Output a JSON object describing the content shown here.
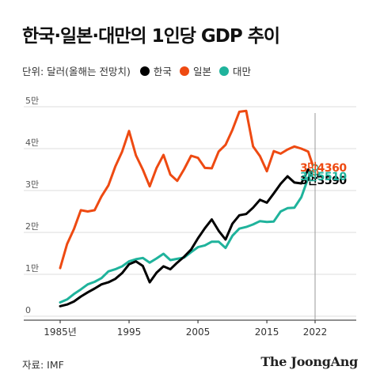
{
  "title": "한국·일본·대만의 1인당 GDP 추이",
  "unit_label": "단위: 달러(올해는 전망치)",
  "source": "자료: IMF",
  "brand": "The JoongAng",
  "chart_data": {
    "type": "line",
    "title": "한국·일본·대만의 1인당 GDP 추이",
    "unit": "단위: 달러(올해는 전망치)",
    "xlabel": "",
    "ylabel": "",
    "xlim": [
      1985,
      2022
    ],
    "ylim": [
      0,
      50000
    ],
    "grid": true,
    "legend": "top-left",
    "x_ticks": [
      {
        "value": 1985,
        "label": "1985년"
      },
      {
        "value": 1995,
        "label": "1995"
      },
      {
        "value": 2005,
        "label": "2005"
      },
      {
        "value": 2015,
        "label": "2015"
      },
      {
        "value": 2022,
        "label": "2022"
      }
    ],
    "y_ticks": [
      {
        "value": 0,
        "label": "0"
      },
      {
        "value": 10000,
        "label": "1만"
      },
      {
        "value": 20000,
        "label": "2만"
      },
      {
        "value": 30000,
        "label": "3만"
      },
      {
        "value": 40000,
        "label": "4만"
      },
      {
        "value": 50000,
        "label": "5만"
      }
    ],
    "marker_year": 2022,
    "x": [
      1985,
      1986,
      1987,
      1988,
      1989,
      1990,
      1991,
      1992,
      1993,
      1994,
      1995,
      1996,
      1997,
      1998,
      1999,
      2000,
      2001,
      2002,
      2003,
      2004,
      2005,
      2006,
      2007,
      2008,
      2009,
      2010,
      2011,
      2012,
      2013,
      2014,
      2015,
      2016,
      2017,
      2018,
      2019,
      2020,
      2021,
      2022
    ],
    "series": [
      {
        "name": "한국",
        "color": "#000000",
        "values": [
          2400,
          2800,
          3500,
          4700,
          5700,
          6600,
          7600,
          8100,
          8900,
          10300,
          12400,
          13100,
          12000,
          8100,
          10400,
          11900,
          11200,
          12800,
          14200,
          15900,
          18600,
          21000,
          23100,
          20400,
          18300,
          22100,
          24100,
          24400,
          25900,
          27800,
          27100,
          29300,
          31600,
          33400,
          31900,
          31700,
          35000,
          33590
        ],
        "end_label": "3만3590"
      },
      {
        "name": "일본",
        "color": "#ee4a12",
        "values": [
          11500,
          17200,
          20800,
          25300,
          25000,
          25300,
          28600,
          31200,
          35700,
          39300,
          44200,
          38400,
          35000,
          31000,
          35400,
          38500,
          33800,
          32300,
          35100,
          38300,
          37800,
          35400,
          35300,
          39300,
          40900,
          44500,
          48800,
          49000,
          40500,
          38200,
          34600,
          39400,
          38800,
          39800,
          40500,
          40000,
          39300,
          34360
        ],
        "end_label": "3만4360"
      },
      {
        "name": "대만",
        "color": "#1fb39c",
        "values": [
          3300,
          4000,
          5300,
          6400,
          7600,
          8200,
          9100,
          10700,
          11200,
          11900,
          13100,
          13600,
          13900,
          12800,
          13800,
          14900,
          13400,
          13700,
          14000,
          15300,
          16500,
          16900,
          17800,
          17800,
          16300,
          19200,
          20900,
          21300,
          21900,
          22700,
          22500,
          22600,
          25000,
          25800,
          25900,
          28400,
          33000,
          35510
        ],
        "end_label": "3만5510"
      }
    ]
  }
}
